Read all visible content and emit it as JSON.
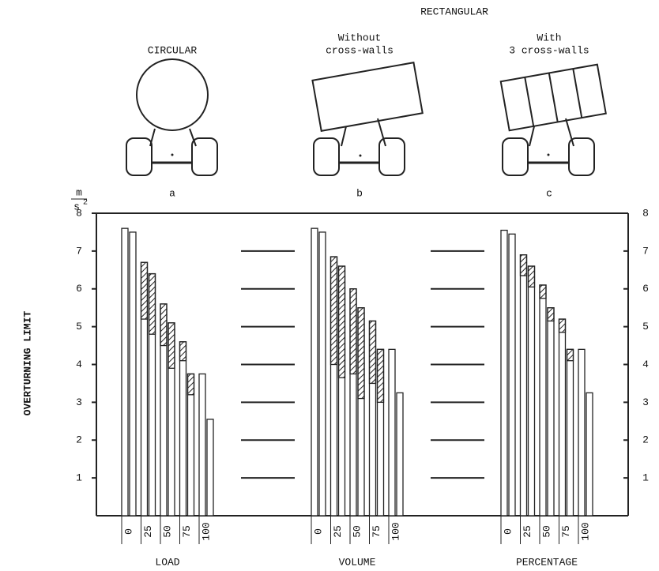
{
  "chart_data": {
    "type": "bar",
    "header": "RECTANGULAR",
    "panels": [
      {
        "lines": [
          "CIRCULAR"
        ],
        "letter": "a"
      },
      {
        "lines": [
          "Without",
          "cross-walls"
        ],
        "letter": "b"
      },
      {
        "lines": [
          "With",
          "3 cross-walls"
        ],
        "letter": "c"
      }
    ],
    "unit": {
      "numerator": "m",
      "denominator": "s",
      "exponent": "2"
    },
    "ylabel": "OVERTURNING LIMIT",
    "categories": [
      "0",
      "25",
      "50",
      "75",
      "100"
    ],
    "groups": [
      {
        "label": "LOAD",
        "bars": [
          [
            7.6,
            7.5
          ],
          [
            6.7,
            6.4
          ],
          [
            5.6,
            5.1
          ],
          [
            4.6,
            3.75
          ],
          [
            3.75,
            2.55
          ]
        ],
        "hatch_low": [
          [
            null,
            null
          ],
          [
            5.2,
            4.8
          ],
          [
            4.5,
            3.9
          ],
          [
            4.1,
            3.2
          ],
          [
            null,
            null
          ]
        ]
      },
      {
        "label": "VOLUME",
        "bars": [
          [
            7.6,
            7.5
          ],
          [
            6.85,
            6.6
          ],
          [
            6.0,
            5.5
          ],
          [
            5.15,
            4.4
          ],
          [
            4.4,
            3.25
          ]
        ],
        "hatch_low": [
          [
            null,
            null
          ],
          [
            4.0,
            3.65
          ],
          [
            3.75,
            3.1
          ],
          [
            3.5,
            3.0
          ],
          [
            null,
            null
          ]
        ]
      },
      {
        "label": "PERCENTAGE",
        "bars": [
          [
            7.55,
            7.45
          ],
          [
            6.9,
            6.6
          ],
          [
            6.1,
            5.5
          ],
          [
            5.2,
            4.4
          ],
          [
            4.4,
            3.25
          ]
        ],
        "hatch_low": [
          [
            null,
            null
          ],
          [
            6.35,
            6.05
          ],
          [
            5.75,
            5.15
          ],
          [
            4.85,
            4.1
          ],
          [
            null,
            null
          ]
        ]
      }
    ],
    "ylim": [
      0,
      8
    ],
    "yticks": [
      1,
      2,
      3,
      4,
      5,
      6,
      7,
      8
    ],
    "right_axis": true,
    "gap_dashes": true,
    "color": "#ffffff",
    "hatch_color": "#222222"
  }
}
